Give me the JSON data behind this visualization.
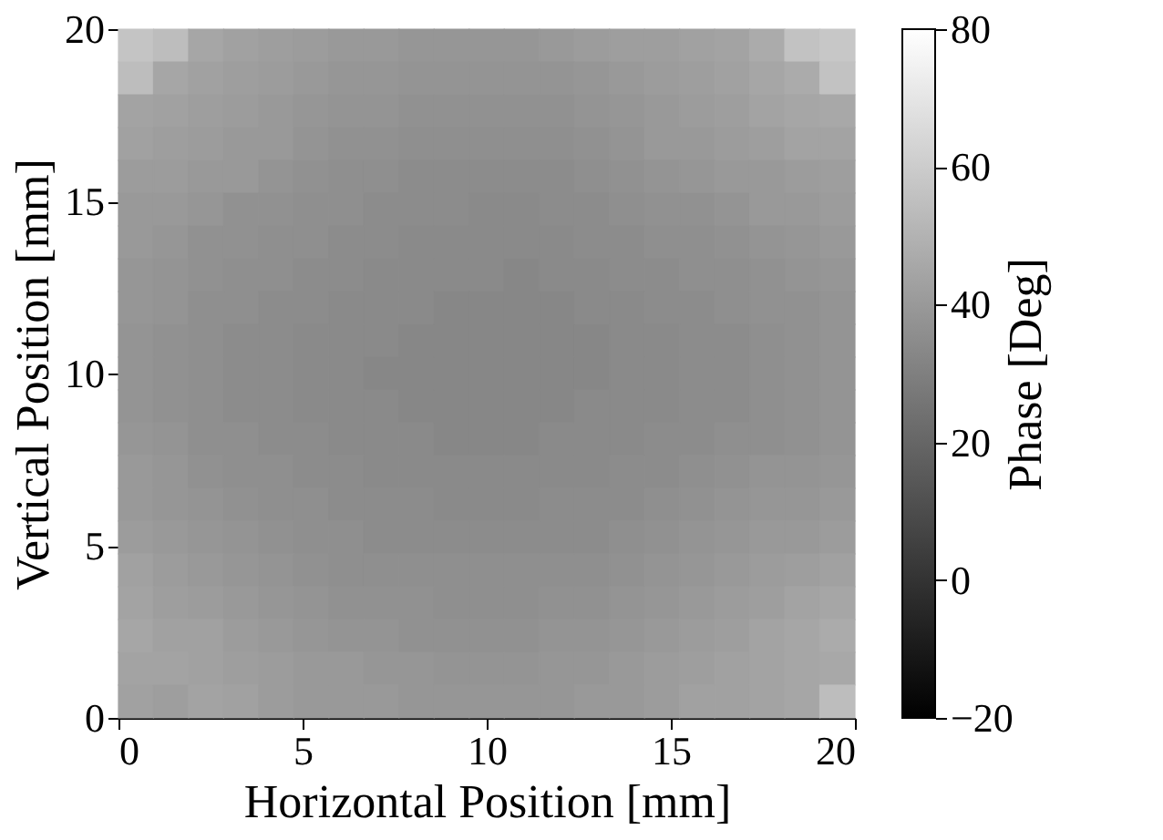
{
  "chart_data": {
    "type": "heatmap",
    "xlabel": "Horizontal Position [mm]",
    "ylabel": "Vertical Position [mm]",
    "clabel": "Phase [Deg]",
    "x": [
      0.476,
      1.429,
      2.381,
      3.333,
      4.286,
      5.238,
      6.19,
      7.143,
      8.095,
      9.048,
      10,
      10.952,
      11.905,
      12.857,
      13.81,
      14.762,
      15.714,
      16.667,
      17.619,
      18.571,
      19.524
    ],
    "y": [
      19.524,
      18.571,
      17.619,
      16.667,
      15.714,
      14.762,
      13.81,
      12.857,
      11.905,
      10.952,
      10,
      9.048,
      8.095,
      7.143,
      6.19,
      5.238,
      4.286,
      3.333,
      2.381,
      1.429,
      0.476
    ],
    "cells": [
      [
        57,
        54,
        45,
        43,
        42,
        41,
        40,
        40,
        39,
        39,
        39,
        39,
        40,
        41,
        42,
        42,
        43,
        44,
        47,
        56,
        58
      ],
      [
        54,
        45,
        43,
        42,
        41,
        40,
        39,
        39,
        38,
        38,
        38,
        38,
        38,
        39,
        40,
        41,
        42,
        43,
        45,
        47,
        56
      ],
      [
        44,
        43,
        42,
        41,
        40,
        39,
        38,
        38,
        37,
        37,
        37,
        37,
        37,
        38,
        39,
        40,
        41,
        42,
        44,
        45,
        46
      ],
      [
        43,
        42,
        41,
        40,
        40,
        38,
        37,
        37,
        36,
        36,
        36,
        36,
        36,
        37,
        38,
        40,
        40,
        41,
        42,
        44,
        44
      ],
      [
        41,
        41,
        40,
        40,
        38,
        37,
        36,
        36,
        35,
        35,
        35,
        35,
        35,
        36,
        37,
        38,
        39,
        40,
        40,
        41,
        42
      ],
      [
        40,
        40,
        39,
        37,
        37,
        36,
        36,
        35,
        35,
        35,
        34,
        34,
        35,
        35,
        36,
        37,
        37,
        38,
        40,
        40,
        41
      ],
      [
        40,
        39,
        37,
        37,
        36,
        36,
        35,
        35,
        34,
        34,
        34,
        34,
        34,
        35,
        35,
        36,
        36,
        37,
        38,
        39,
        40
      ],
      [
        39,
        38,
        37,
        36,
        36,
        35,
        35,
        34,
        34,
        34,
        34,
        33,
        34,
        34,
        35,
        35,
        36,
        36,
        37,
        38,
        39
      ],
      [
        39,
        38,
        36,
        36,
        35,
        35,
        34,
        34,
        34,
        33,
        33,
        33,
        33,
        34,
        34,
        35,
        35,
        36,
        37,
        37,
        38
      ],
      [
        38,
        37,
        36,
        35,
        35,
        34,
        34,
        34,
        33,
        33,
        33,
        33,
        33,
        33,
        34,
        34,
        35,
        35,
        36,
        37,
        38
      ],
      [
        38,
        37,
        36,
        35,
        35,
        34,
        34,
        33,
        33,
        33,
        33,
        33,
        33,
        33,
        34,
        34,
        35,
        35,
        36,
        37,
        38
      ],
      [
        38,
        37,
        36,
        35,
        35,
        34,
        34,
        34,
        33,
        33,
        33,
        33,
        33,
        34,
        34,
        34,
        35,
        35,
        36,
        37,
        38
      ],
      [
        39,
        38,
        36,
        36,
        35,
        35,
        34,
        34,
        34,
        33,
        33,
        33,
        34,
        34,
        34,
        35,
        35,
        36,
        36,
        37,
        38
      ],
      [
        40,
        39,
        37,
        36,
        36,
        35,
        35,
        34,
        34,
        34,
        34,
        34,
        34,
        34,
        35,
        35,
        36,
        37,
        38,
        38,
        39
      ],
      [
        40,
        39,
        38,
        37,
        36,
        36,
        35,
        35,
        35,
        34,
        34,
        34,
        35,
        35,
        35,
        36,
        37,
        38,
        39,
        39,
        40
      ],
      [
        41,
        40,
        39,
        38,
        37,
        36,
        36,
        35,
        35,
        35,
        35,
        35,
        35,
        35,
        36,
        37,
        38,
        39,
        40,
        40,
        41
      ],
      [
        43,
        41,
        40,
        39,
        38,
        37,
        36,
        36,
        36,
        36,
        36,
        36,
        36,
        36,
        37,
        38,
        39,
        40,
        41,
        42,
        43
      ],
      [
        44,
        42,
        41,
        40,
        39,
        38,
        37,
        37,
        37,
        36,
        36,
        36,
        37,
        37,
        38,
        39,
        40,
        41,
        42,
        44,
        45
      ],
      [
        45,
        43,
        43,
        41,
        40,
        39,
        38,
        38,
        37,
        37,
        37,
        37,
        38,
        38,
        39,
        40,
        41,
        42,
        44,
        45,
        47
      ],
      [
        44,
        44,
        43,
        42,
        41,
        40,
        40,
        39,
        39,
        38,
        38,
        38,
        39,
        39,
        40,
        41,
        42,
        43,
        44,
        45,
        46
      ],
      [
        43,
        42,
        44,
        43,
        41,
        40,
        40,
        40,
        39,
        39,
        39,
        39,
        39,
        40,
        40,
        41,
        43,
        43,
        44,
        45,
        54
      ]
    ],
    "xlim": [
      0,
      20
    ],
    "ylim": [
      0,
      20
    ],
    "xticks": [
      0,
      5,
      10,
      15,
      20
    ],
    "yticks": [
      0,
      5,
      10,
      15,
      20
    ],
    "clim": [
      -20,
      80
    ],
    "cticks": [
      -20,
      0,
      20,
      40,
      60,
      80
    ],
    "grid": false
  }
}
